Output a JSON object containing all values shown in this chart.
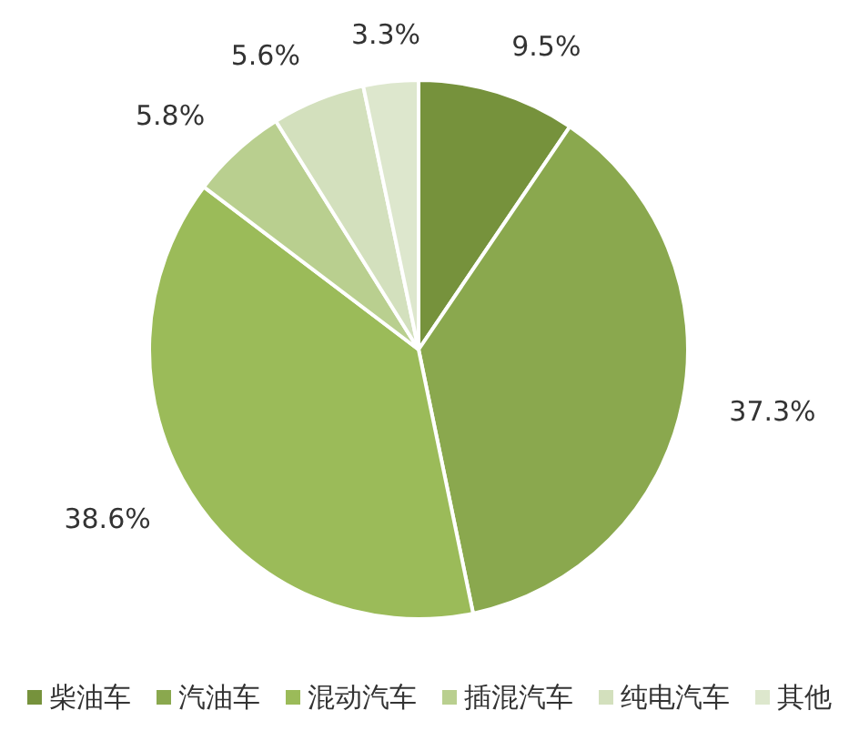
{
  "chart_data": {
    "type": "pie",
    "categories": [
      "柴油车",
      "汽油车",
      "混动汽车",
      "插混汽车",
      "纯电汽车",
      "其他"
    ],
    "values": [
      9.5,
      37.3,
      38.6,
      5.8,
      5.6,
      3.3
    ],
    "colors": [
      "#76923c",
      "#8aa84e",
      "#9bbb59",
      "#b9cf8f",
      "#d3e0bd",
      "#dde7cd"
    ],
    "value_labels": [
      "9.5%",
      "37.3%",
      "38.6%",
      "5.8%",
      "5.6%",
      "3.3%"
    ],
    "legend": "bottom"
  }
}
